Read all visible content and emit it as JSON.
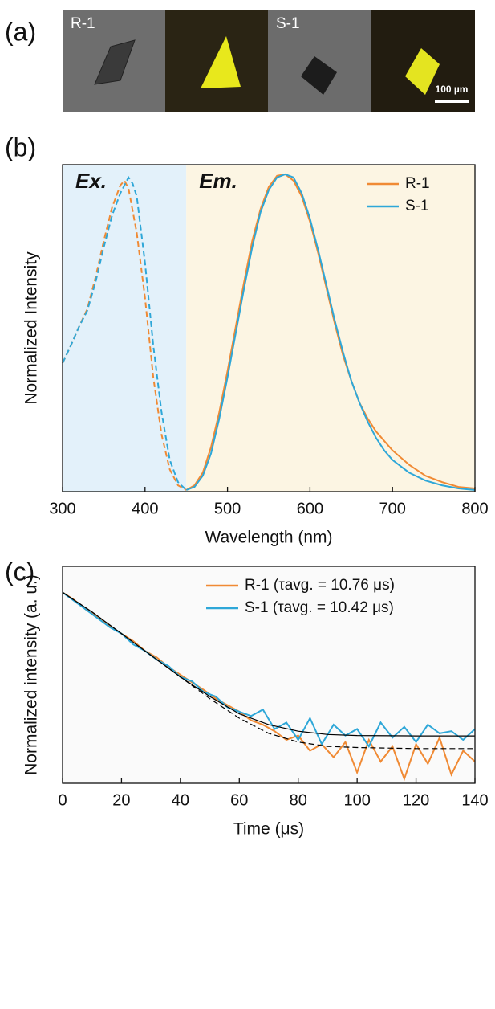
{
  "panel_labels": [
    "(a)",
    "(b)",
    "(c)"
  ],
  "micrographs": {
    "labels": [
      "R-1",
      "S-1"
    ],
    "scale_bar": "100 µm"
  },
  "chart_data": [
    {
      "type": "line",
      "xlabel": "Wavelength (nm)",
      "ylabel": "Normalized Intensity",
      "xlim": [
        300,
        800
      ],
      "xticks": [
        300,
        400,
        500,
        600,
        700,
        800
      ],
      "ylim": [
        0,
        1.03
      ],
      "legend": "upper right",
      "regions": [
        {
          "xlim": [
            300,
            450
          ],
          "color": "#e3f1fa",
          "label": "Ex."
        },
        {
          "xlim": [
            450,
            800
          ],
          "color": "#fcf5e3",
          "label": "Em."
        }
      ],
      "series": [
        {
          "color": "#f08a34",
          "dash": true,
          "x": [
            300,
            310,
            320,
            330,
            340,
            350,
            360,
            370,
            375,
            380,
            390,
            400,
            410,
            420,
            430,
            440,
            450
          ],
          "values": [
            0.405,
            0.46,
            0.52,
            0.575,
            0.675,
            0.79,
            0.895,
            0.965,
            0.98,
            0.955,
            0.815,
            0.61,
            0.36,
            0.18,
            0.07,
            0.02,
            0.005
          ]
        },
        {
          "color": "#2ea7d8",
          "dash": true,
          "x": [
            300,
            310,
            320,
            330,
            340,
            350,
            360,
            370,
            380,
            385,
            390,
            400,
            410,
            420,
            430,
            440,
            450
          ],
          "values": [
            0.405,
            0.46,
            0.52,
            0.57,
            0.66,
            0.77,
            0.87,
            0.94,
            0.99,
            0.97,
            0.93,
            0.72,
            0.46,
            0.25,
            0.1,
            0.03,
            0.005
          ]
        },
        {
          "name": "R-1",
          "color": "#f08a34",
          "x": [
            450,
            460,
            470,
            480,
            490,
            500,
            510,
            520,
            530,
            540,
            550,
            560,
            570,
            580,
            590,
            600,
            610,
            620,
            630,
            640,
            650,
            660,
            670,
            680,
            690,
            700,
            720,
            740,
            760,
            780,
            800
          ],
          "values": [
            0.005,
            0.02,
            0.06,
            0.14,
            0.25,
            0.38,
            0.52,
            0.66,
            0.79,
            0.89,
            0.96,
            0.995,
            1.0,
            0.98,
            0.93,
            0.85,
            0.75,
            0.64,
            0.53,
            0.43,
            0.35,
            0.28,
            0.23,
            0.19,
            0.16,
            0.13,
            0.085,
            0.05,
            0.03,
            0.015,
            0.01
          ]
        },
        {
          "name": "S-1",
          "color": "#2ea7d8",
          "x": [
            450,
            460,
            470,
            480,
            490,
            500,
            510,
            520,
            530,
            540,
            550,
            560,
            570,
            580,
            590,
            600,
            610,
            620,
            630,
            640,
            650,
            660,
            670,
            680,
            690,
            700,
            720,
            740,
            760,
            780,
            800
          ],
          "values": [
            0.005,
            0.015,
            0.05,
            0.12,
            0.23,
            0.36,
            0.5,
            0.64,
            0.77,
            0.88,
            0.95,
            0.99,
            1.0,
            0.99,
            0.94,
            0.86,
            0.76,
            0.65,
            0.54,
            0.44,
            0.35,
            0.28,
            0.22,
            0.17,
            0.13,
            0.1,
            0.06,
            0.035,
            0.02,
            0.01,
            0.005
          ]
        }
      ]
    },
    {
      "type": "line",
      "xlabel": "Time (μs)",
      "ylabel": "Normalized intensity (a. u.)",
      "xlim": [
        0,
        140
      ],
      "xticks": [
        0,
        20,
        40,
        60,
        80,
        100,
        120,
        140
      ],
      "ylim": [
        0,
        1
      ],
      "legend": "upper right",
      "series": [
        {
          "name": "R-1 (τavg. = 10.76 μs)",
          "color": "#f08a34",
          "x": [
            0,
            4,
            8,
            12,
            16,
            20,
            24,
            28,
            32,
            36,
            40,
            44,
            48,
            52,
            56,
            60,
            64,
            68,
            72,
            76,
            80,
            84,
            88,
            92,
            96,
            100,
            104,
            108,
            112,
            116,
            120,
            124,
            128,
            132,
            136,
            140
          ],
          "values": [
            0.88,
            0.845,
            0.8,
            0.765,
            0.725,
            0.69,
            0.655,
            0.61,
            0.58,
            0.535,
            0.5,
            0.465,
            0.43,
            0.39,
            0.36,
            0.33,
            0.29,
            0.27,
            0.24,
            0.2,
            0.22,
            0.15,
            0.18,
            0.12,
            0.19,
            0.05,
            0.2,
            0.1,
            0.17,
            0.02,
            0.18,
            0.09,
            0.21,
            0.04,
            0.15,
            0.1
          ]
        },
        {
          "name": "S-1 (τavg. = 10.42 μs)",
          "color": "#2ea7d8",
          "x": [
            0,
            4,
            8,
            12,
            16,
            20,
            24,
            28,
            32,
            36,
            40,
            44,
            48,
            52,
            56,
            60,
            64,
            68,
            72,
            76,
            80,
            84,
            88,
            92,
            96,
            100,
            104,
            108,
            112,
            116,
            120,
            124,
            128,
            132,
            136,
            140
          ],
          "values": [
            0.88,
            0.84,
            0.8,
            0.76,
            0.72,
            0.69,
            0.64,
            0.61,
            0.57,
            0.54,
            0.49,
            0.47,
            0.42,
            0.4,
            0.35,
            0.33,
            0.31,
            0.34,
            0.25,
            0.28,
            0.2,
            0.3,
            0.18,
            0.27,
            0.22,
            0.25,
            0.17,
            0.28,
            0.21,
            0.26,
            0.19,
            0.27,
            0.23,
            0.24,
            0.2,
            0.25
          ]
        },
        {
          "color": "#000000",
          "dash": true,
          "x": [
            0,
            10,
            20,
            30,
            40,
            50,
            60,
            70,
            80,
            90,
            100,
            120,
            140
          ],
          "values": [
            0.88,
            0.79,
            0.69,
            0.59,
            0.49,
            0.39,
            0.3,
            0.23,
            0.19,
            0.17,
            0.165,
            0.16,
            0.16
          ]
        },
        {
          "color": "#000000",
          "x": [
            0,
            10,
            20,
            30,
            40,
            50,
            60,
            70,
            80,
            90,
            100,
            120,
            140
          ],
          "values": [
            0.88,
            0.79,
            0.69,
            0.59,
            0.49,
            0.4,
            0.32,
            0.27,
            0.24,
            0.225,
            0.22,
            0.218,
            0.218
          ]
        }
      ]
    }
  ]
}
